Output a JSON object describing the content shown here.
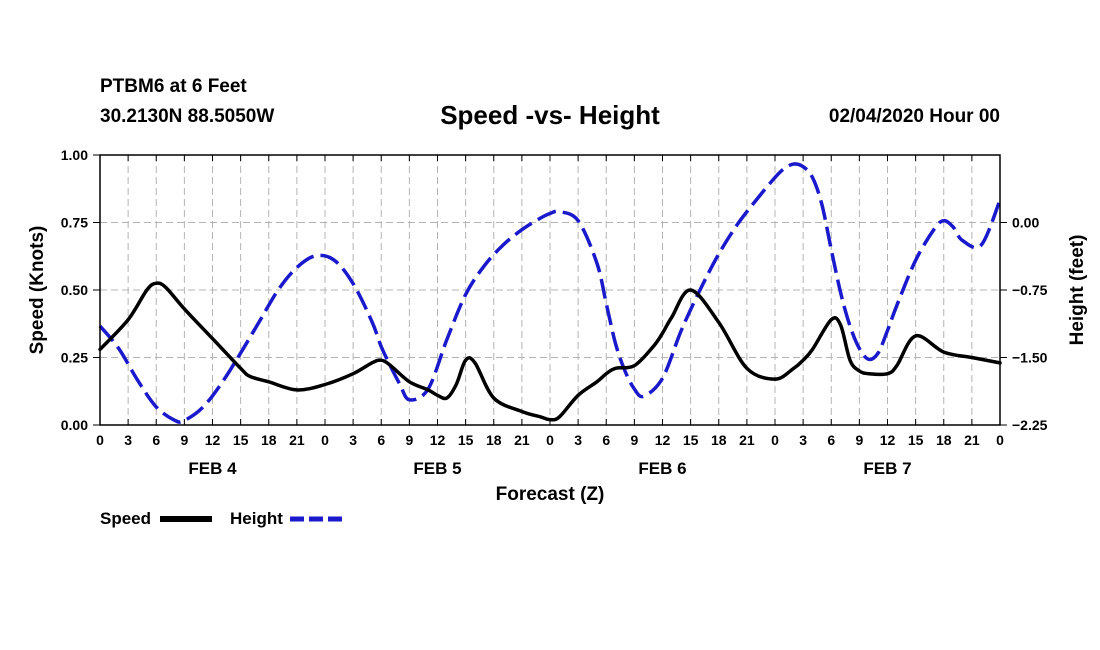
{
  "header": {
    "station": "PTBM6 at 6 Feet",
    "coords": "30.2130N 88.5050W",
    "run_date": "02/04/2020 Hour 00"
  },
  "colors": {
    "speed": "#000000",
    "height": "#1a1acc",
    "grid": "#b4b4b4"
  },
  "chart_data": {
    "type": "line",
    "title": "Speed -vs- Height",
    "xlabel": "Forecast (Z)",
    "ylabel": "Speed (Knots)",
    "y2label": "Height (feet)",
    "xlim": [
      0,
      96
    ],
    "ylim": [
      0,
      1
    ],
    "y2lim": [
      -2.25,
      0.75
    ],
    "y_ticks": [
      0,
      0.25,
      0.5,
      0.75,
      1.0
    ],
    "y_tick_labels": [
      "0.00",
      "0.25",
      "0.50",
      "0.75",
      "1.00"
    ],
    "y2_ticks": [
      -2.25,
      -1.5,
      -0.75,
      0.0
    ],
    "y2_tick_labels": [
      "−2.25",
      "−1.50",
      "−0.75",
      "0.00"
    ],
    "x_ticks": [
      0,
      3,
      6,
      9,
      12,
      15,
      18,
      21,
      24,
      27,
      30,
      33,
      36,
      39,
      42,
      45,
      48,
      51,
      54,
      57,
      60,
      63,
      66,
      69,
      72,
      75,
      78,
      81,
      84,
      87,
      90,
      93,
      96
    ],
    "x_tick_labels": [
      "0",
      "3",
      "6",
      "9",
      "12",
      "15",
      "18",
      "21",
      "0",
      "3",
      "6",
      "9",
      "12",
      "15",
      "18",
      "21",
      "0",
      "3",
      "6",
      "9",
      "12",
      "15",
      "18",
      "21",
      "0",
      "3",
      "6",
      "9",
      "12",
      "15",
      "18",
      "21",
      "0"
    ],
    "day_labels": [
      {
        "hour": 12,
        "label": "FEB 4"
      },
      {
        "hour": 36,
        "label": "FEB 5"
      },
      {
        "hour": 60,
        "label": "FEB 6"
      },
      {
        "hour": 84,
        "label": "FEB 7"
      }
    ],
    "grid": true,
    "legend": {
      "position": "bottom-left",
      "entries": [
        "Speed",
        "Height"
      ]
    },
    "series": [
      {
        "name": "Speed",
        "axis": "left",
        "style": "solid",
        "x": [
          0,
          3,
          5,
          6,
          7,
          9,
          12,
          15,
          16,
          18,
          21,
          24,
          27,
          29,
          30,
          31,
          33,
          35,
          36,
          37,
          38,
          39,
          40,
          42,
          45,
          47,
          48,
          49,
          51,
          53,
          54,
          55,
          57,
          59,
          60,
          61,
          63,
          66,
          69,
          72,
          74,
          75,
          76,
          78,
          79,
          80,
          81,
          82,
          84,
          85,
          87,
          90,
          93,
          96
        ],
        "values": [
          0.28,
          0.39,
          0.5,
          0.525,
          0.51,
          0.43,
          0.32,
          0.21,
          0.18,
          0.16,
          0.13,
          0.15,
          0.19,
          0.23,
          0.24,
          0.22,
          0.16,
          0.13,
          0.11,
          0.1,
          0.15,
          0.24,
          0.23,
          0.1,
          0.05,
          0.03,
          0.02,
          0.03,
          0.11,
          0.16,
          0.19,
          0.21,
          0.22,
          0.29,
          0.34,
          0.4,
          0.5,
          0.38,
          0.21,
          0.17,
          0.21,
          0.24,
          0.28,
          0.39,
          0.37,
          0.24,
          0.2,
          0.19,
          0.19,
          0.22,
          0.33,
          0.27,
          0.25,
          0.23
        ]
      },
      {
        "name": "Height",
        "axis": "right",
        "style": "dashed",
        "x": [
          0,
          2,
          4,
          6,
          8,
          9,
          11,
          13,
          15,
          17,
          19,
          21,
          23,
          25,
          27,
          29,
          30,
          31,
          32,
          33,
          35,
          37,
          39,
          41,
          43,
          45,
          47,
          48,
          49,
          51,
          53,
          54,
          55,
          56,
          57,
          58,
          60,
          62,
          64,
          66,
          68,
          70,
          72,
          73,
          74,
          75,
          76,
          77,
          78,
          79,
          80,
          81,
          82,
          83,
          84,
          85,
          87,
          89,
          90,
          91,
          92,
          94,
          96
        ],
        "values": [
          -1.15,
          -1.4,
          -1.75,
          -2.05,
          -2.2,
          -2.2,
          -2.05,
          -1.78,
          -1.45,
          -1.1,
          -0.75,
          -0.5,
          -0.37,
          -0.42,
          -0.68,
          -1.1,
          -1.38,
          -1.6,
          -1.8,
          -1.97,
          -1.85,
          -1.3,
          -0.8,
          -0.48,
          -0.25,
          -0.08,
          0.05,
          0.1,
          0.12,
          0.02,
          -0.45,
          -0.9,
          -1.35,
          -1.65,
          -1.85,
          -1.93,
          -1.73,
          -1.2,
          -0.75,
          -0.35,
          -0.02,
          0.25,
          0.5,
          0.6,
          0.65,
          0.62,
          0.5,
          0.2,
          -0.3,
          -0.78,
          -1.15,
          -1.4,
          -1.52,
          -1.45,
          -1.2,
          -0.92,
          -0.42,
          -0.07,
          0.02,
          -0.05,
          -0.2,
          -0.25,
          0.25
        ]
      }
    ]
  }
}
